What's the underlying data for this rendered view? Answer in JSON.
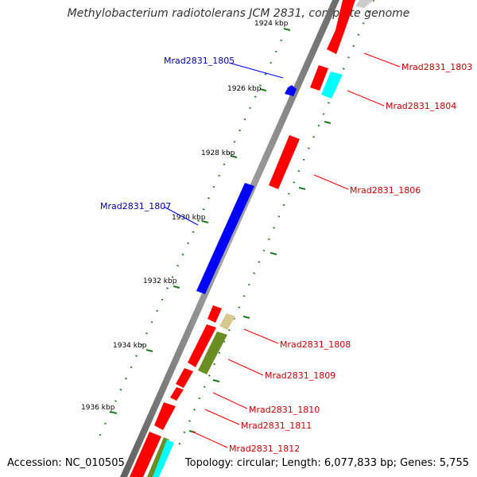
{
  "title": "Methylobacterium radiotolerans JCM 2831, complete genome",
  "footer": {
    "accession": "Accession: NC_010505",
    "topology": "Topology: circular; Length: 6,077,833 bp; Genes: 5,755"
  },
  "ticks": [
    "1924 kbp",
    "1926 kbp",
    "1928 kbp",
    "1930 kbp",
    "1932 kbp",
    "1934 kbp",
    "1936 kbp"
  ],
  "gene_labels": {
    "g1803": "Mrad2831_1803",
    "g1804": "Mrad2831_1804",
    "g1805": "Mrad2831_1805",
    "g1806": "Mrad2831_1806",
    "g1807": "Mrad2831_1807",
    "g1808": "Mrad2831_1808",
    "g1809": "Mrad2831_1809",
    "g1810": "Mrad2831_1810",
    "g1811": "Mrad2831_1811",
    "g1812": "Mrad2831_1812"
  },
  "colors": {
    "forward": "#ff0000",
    "reverse": "#0000ff",
    "cyan": "#00ffff",
    "olive": "#6b8e23",
    "khaki": "#d6c98f",
    "backbone": "#8a8a8a",
    "tick": "#1e7a1e"
  }
}
